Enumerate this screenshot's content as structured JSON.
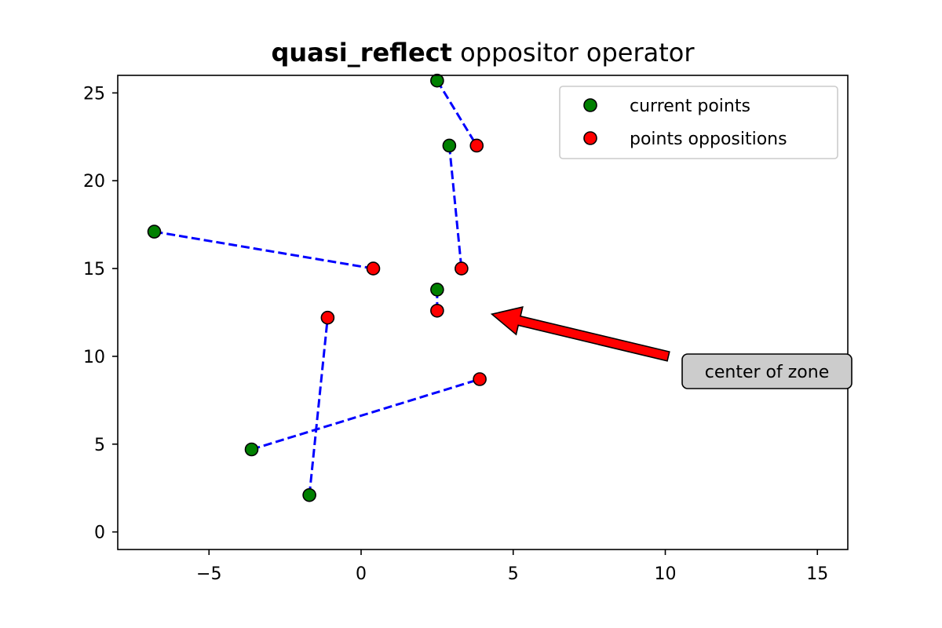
{
  "chart_data": {
    "type": "scatter",
    "title_bold": "quasi_reflect",
    "title_rest": " oppositor operator",
    "xlabel": "",
    "ylabel": "",
    "xlim": [
      -8,
      16
    ],
    "ylim": [
      -1,
      26
    ],
    "xticks": [
      -5,
      0,
      5,
      10,
      15
    ],
    "xtick_labels": [
      "−5",
      "0",
      "5",
      "10",
      "15"
    ],
    "yticks": [
      0,
      5,
      10,
      15,
      20,
      25
    ],
    "ytick_labels": [
      "0",
      "5",
      "10",
      "15",
      "20",
      "25"
    ],
    "grid": false,
    "legend_position": "top-right",
    "series": [
      {
        "name": "current points",
        "color": "#008000",
        "points": [
          [
            2.5,
            25.7
          ],
          [
            2.9,
            22.0
          ],
          [
            -6.8,
            17.1
          ],
          [
            2.5,
            13.8
          ],
          [
            -3.6,
            4.7
          ],
          [
            -1.7,
            2.1
          ]
        ]
      },
      {
        "name": "points oppositions",
        "color": "#ff0000",
        "points": [
          [
            3.8,
            22.0
          ],
          [
            3.3,
            15.0
          ],
          [
            0.4,
            15.0
          ],
          [
            2.5,
            12.6
          ],
          [
            -1.1,
            12.2
          ],
          [
            3.9,
            8.7
          ]
        ]
      }
    ],
    "connection_color": "#0000ff",
    "connections": [
      [
        [
          2.5,
          25.7
        ],
        [
          3.8,
          22.0
        ]
      ],
      [
        [
          2.9,
          22.0
        ],
        [
          3.3,
          15.0
        ]
      ],
      [
        [
          -6.8,
          17.1
        ],
        [
          0.4,
          15.0
        ]
      ],
      [
        [
          2.5,
          13.8
        ],
        [
          2.5,
          12.6
        ]
      ],
      [
        [
          -3.6,
          4.7
        ],
        [
          3.9,
          8.7
        ]
      ],
      [
        [
          -1.7,
          2.1
        ],
        [
          -1.1,
          12.2
        ]
      ]
    ],
    "annotation": {
      "text": "center of zone",
      "target": [
        4.3,
        12.4
      ],
      "arrow_start": [
        10.1,
        10.0
      ],
      "arrow_color": "#ff0000",
      "box_color": "#cccccc"
    }
  }
}
